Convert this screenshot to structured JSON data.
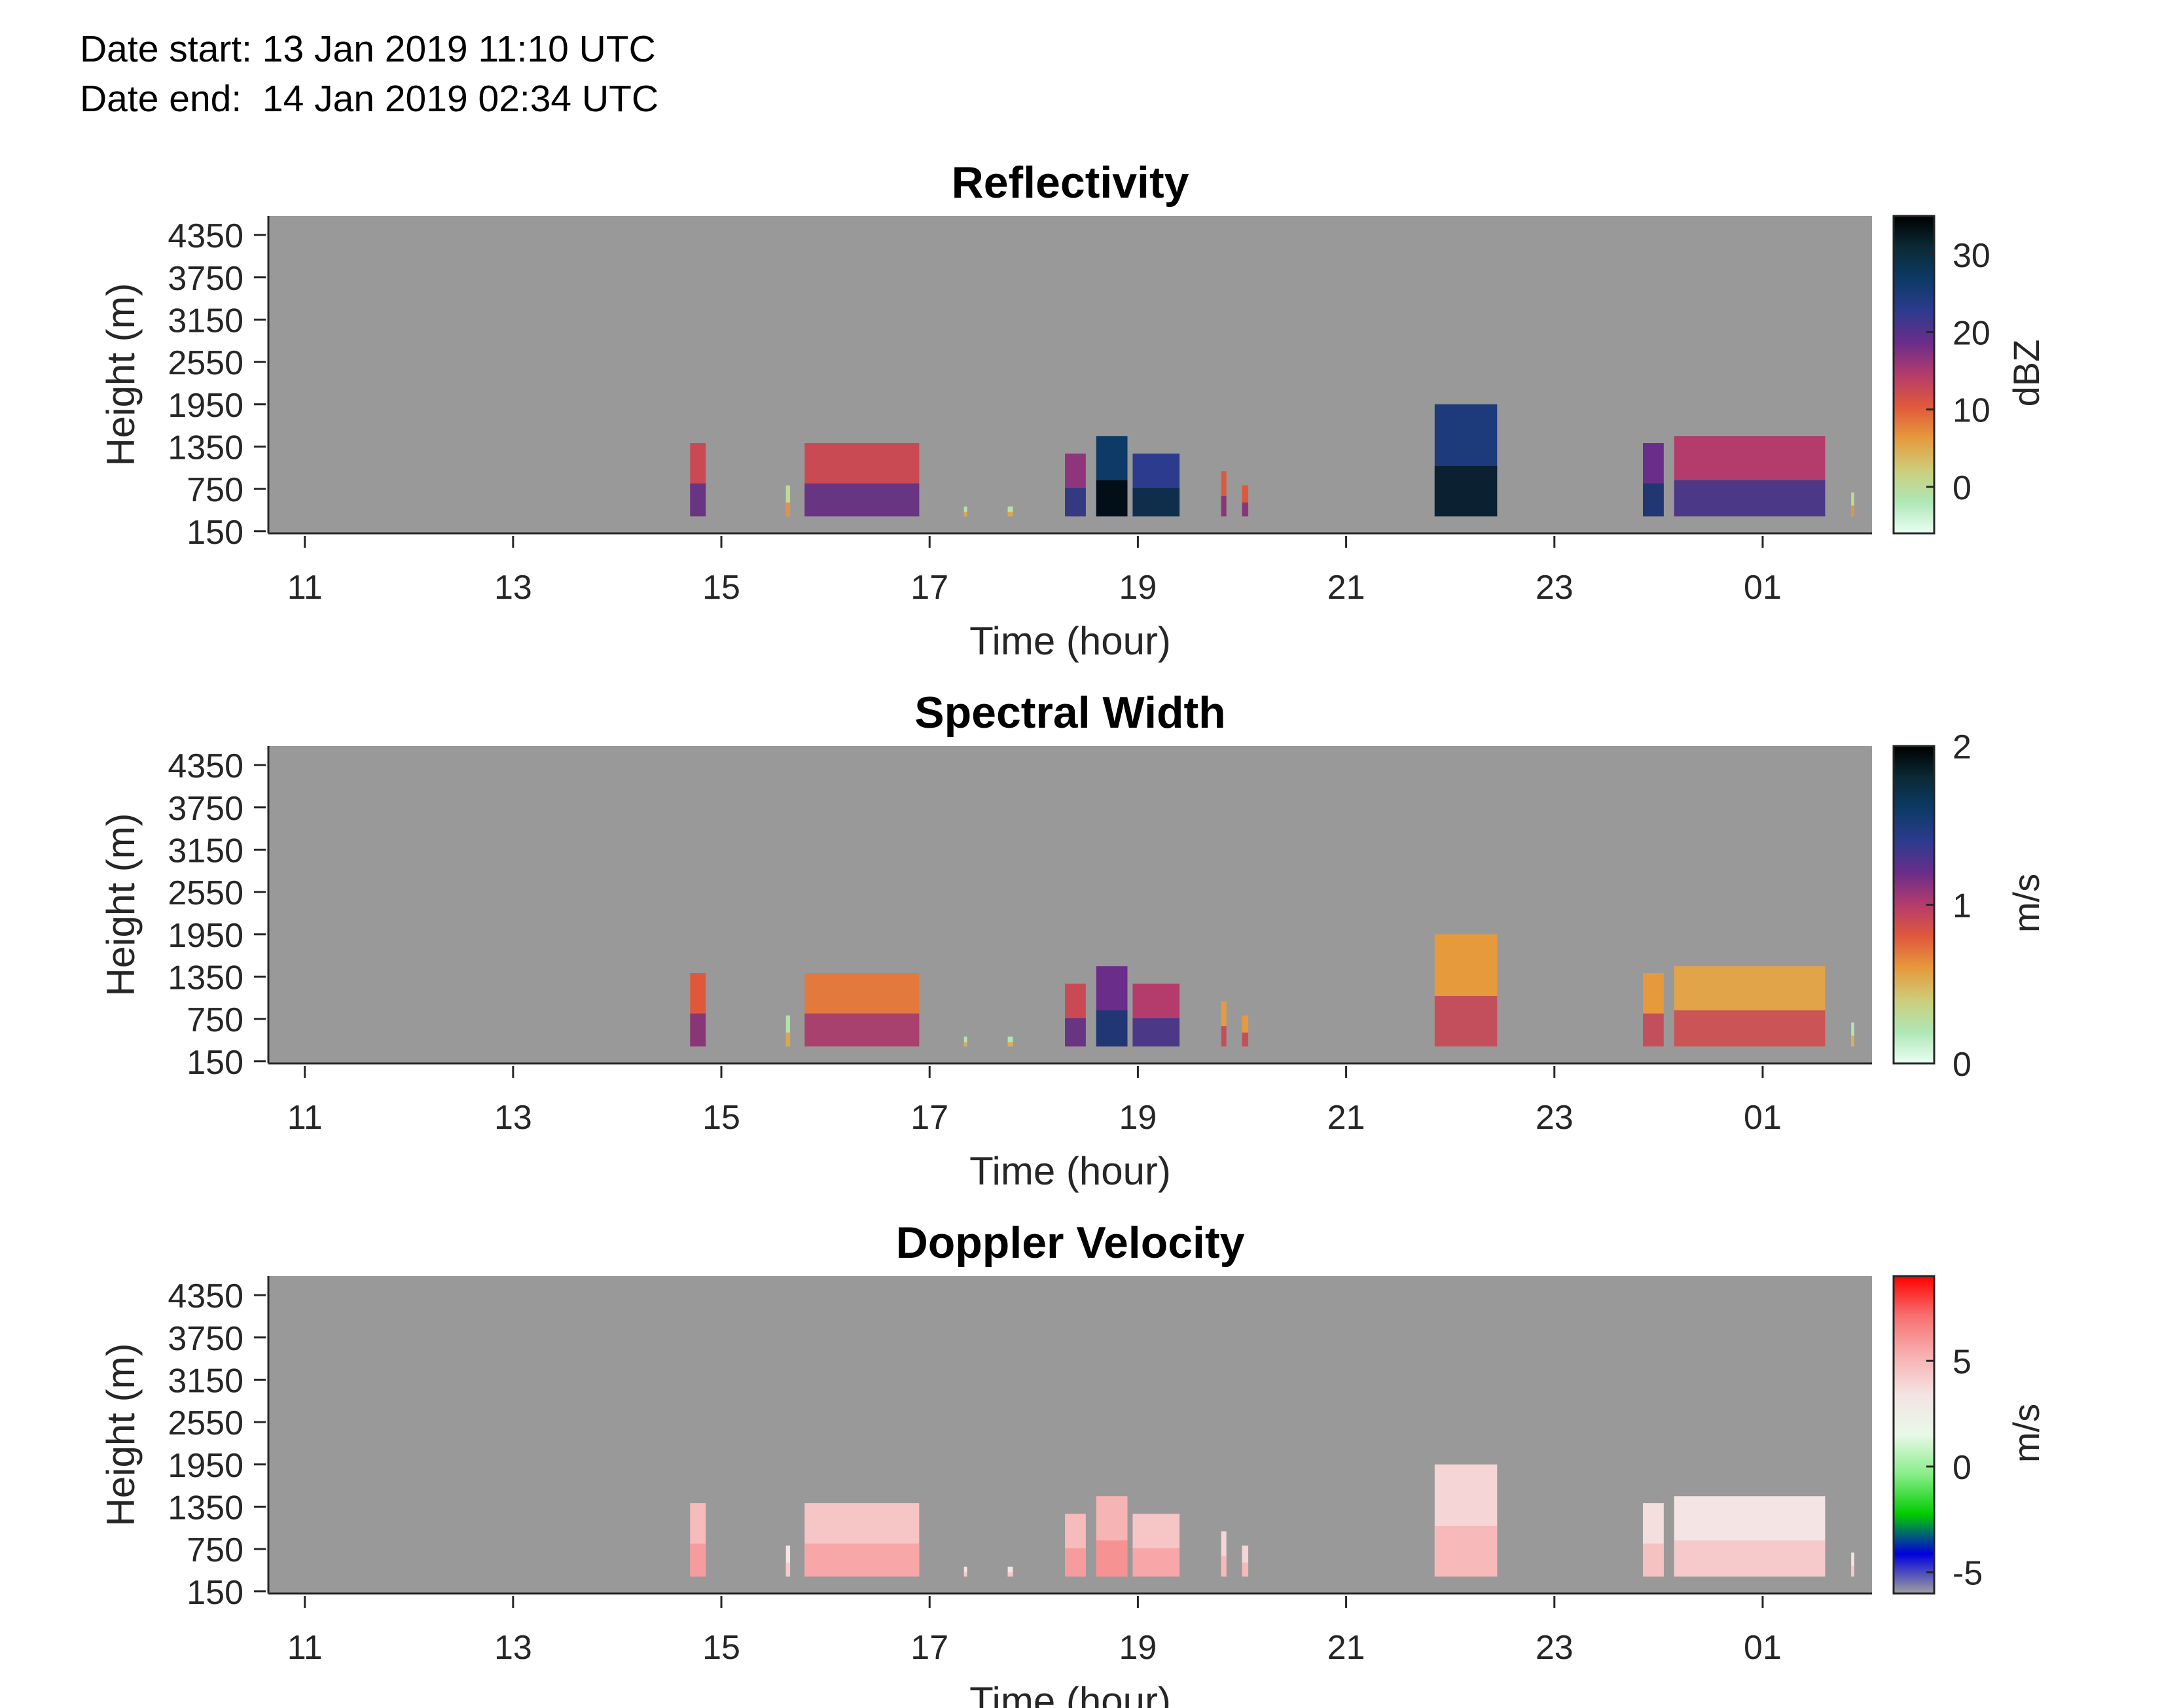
{
  "header": {
    "date_start_label": "Date start:",
    "date_start_value": "13 Jan 2019 11:10 UTC",
    "date_end_label": "Date end:",
    "date_end_value": "14 Jan 2019 02:34 UTC"
  },
  "colors": {
    "background": "#999999",
    "colorbar_ref_spec": [
      "#e8fff4",
      "#aee7b4",
      "#cdcd7a",
      "#e69a3c",
      "#e0583c",
      "#b43c6c",
      "#6a2d8a",
      "#2c3b8e",
      "#0d3a66",
      "#0b2a36",
      "#000000"
    ],
    "colorbar_doppler": [
      "#a0a0a0",
      "#0000dd",
      "#00cc00",
      "#88ee88",
      "#e8f8e8",
      "#f4e4e4",
      "#f7b0b0",
      "#f77070",
      "#ff0000"
    ]
  },
  "chart_data": [
    {
      "type": "heatmap",
      "title": "Reflectivity",
      "xlabel": "Time (hour)",
      "ylabel": "Height (m)",
      "x_ticks": [
        "11",
        "13",
        "15",
        "17",
        "19",
        "21",
        "23",
        "01"
      ],
      "x_range_hours": [
        10.65,
        26.05
      ],
      "y_ticks": [
        "150",
        "750",
        "1350",
        "1950",
        "2550",
        "3150",
        "3750",
        "4350"
      ],
      "y_range_m": [
        120,
        4620
      ],
      "colorbar": {
        "label": "dBZ",
        "ticks": [
          "0",
          "10",
          "20",
          "30"
        ],
        "range": [
          -6,
          35
        ]
      },
      "echo_blocks": [
        {
          "start": 14.7,
          "end": 14.85,
          "top": 1400,
          "level": 0.45
        },
        {
          "start": 15.62,
          "end": 15.66,
          "top": 800,
          "level": 0.15
        },
        {
          "start": 15.8,
          "end": 16.9,
          "top": 1400,
          "level": 0.45
        },
        {
          "start": 17.33,
          "end": 17.36,
          "top": 500,
          "level": 0.12
        },
        {
          "start": 17.75,
          "end": 17.8,
          "top": 500,
          "level": 0.12
        },
        {
          "start": 18.3,
          "end": 18.5,
          "top": 1250,
          "level": 0.55
        },
        {
          "start": 18.6,
          "end": 18.9,
          "top": 1500,
          "level": 0.8
        },
        {
          "start": 18.95,
          "end": 19.4,
          "top": 1250,
          "level": 0.7
        },
        {
          "start": 19.8,
          "end": 19.85,
          "top": 1000,
          "level": 0.4
        },
        {
          "start": 20.0,
          "end": 20.06,
          "top": 800,
          "level": 0.4
        },
        {
          "start": 21.85,
          "end": 22.45,
          "top": 1950,
          "level": 0.75
        },
        {
          "start": 23.85,
          "end": 24.05,
          "top": 1400,
          "level": 0.6
        },
        {
          "start": 24.15,
          "end": 25.6,
          "top": 1500,
          "level": 0.5
        },
        {
          "start": 25.85,
          "end": 25.88,
          "top": 700,
          "level": 0.15
        }
      ]
    },
    {
      "type": "heatmap",
      "title": "Spectral Width",
      "xlabel": "Time (hour)",
      "ylabel": "Height (m)",
      "x_ticks": [
        "11",
        "13",
        "15",
        "17",
        "19",
        "21",
        "23",
        "01"
      ],
      "x_range_hours": [
        10.65,
        26.05
      ],
      "y_ticks": [
        "150",
        "750",
        "1350",
        "1950",
        "2550",
        "3150",
        "3750",
        "4350"
      ],
      "y_range_m": [
        120,
        4620
      ],
      "colorbar": {
        "label": "m/s",
        "ticks": [
          "0",
          "1",
          "2"
        ],
        "range": [
          0,
          2
        ]
      },
      "echo_blocks": [
        {
          "start": 14.7,
          "end": 14.85,
          "top": 1400,
          "level": 0.4
        },
        {
          "start": 15.62,
          "end": 15.66,
          "top": 800,
          "level": 0.12
        },
        {
          "start": 15.8,
          "end": 16.9,
          "top": 1400,
          "level": 0.35
        },
        {
          "start": 17.33,
          "end": 17.36,
          "top": 500,
          "level": 0.1
        },
        {
          "start": 17.75,
          "end": 17.8,
          "top": 500,
          "level": 0.1
        },
        {
          "start": 18.3,
          "end": 18.5,
          "top": 1250,
          "level": 0.45
        },
        {
          "start": 18.6,
          "end": 18.9,
          "top": 1500,
          "level": 0.6
        },
        {
          "start": 18.95,
          "end": 19.4,
          "top": 1250,
          "level": 0.5
        },
        {
          "start": 19.8,
          "end": 19.85,
          "top": 1000,
          "level": 0.3
        },
        {
          "start": 20.0,
          "end": 20.06,
          "top": 800,
          "level": 0.3
        },
        {
          "start": 21.85,
          "end": 22.45,
          "top": 1950,
          "level": 0.3
        },
        {
          "start": 23.85,
          "end": 24.05,
          "top": 1400,
          "level": 0.3
        },
        {
          "start": 24.15,
          "end": 25.6,
          "top": 1500,
          "level": 0.28
        },
        {
          "start": 25.85,
          "end": 25.88,
          "top": 700,
          "level": 0.1
        }
      ]
    },
    {
      "type": "heatmap",
      "title": "Doppler Velocity",
      "xlabel": "Time (hour)",
      "ylabel": "Height (m)",
      "x_ticks": [
        "11",
        "13",
        "15",
        "17",
        "19",
        "21",
        "23",
        "01"
      ],
      "x_range_hours": [
        10.65,
        26.05
      ],
      "y_ticks": [
        "150",
        "750",
        "1350",
        "1950",
        "2550",
        "3150",
        "3750",
        "4350"
      ],
      "y_range_m": [
        120,
        4620
      ],
      "colorbar": {
        "label": "m/s",
        "ticks": [
          "-5",
          "0",
          "5"
        ],
        "range": [
          -6,
          9
        ]
      },
      "echo_blocks": [
        {
          "start": 14.7,
          "end": 14.85,
          "top": 1400,
          "level": 0.72
        },
        {
          "start": 15.62,
          "end": 15.66,
          "top": 800,
          "level": 0.62
        },
        {
          "start": 15.8,
          "end": 16.9,
          "top": 1400,
          "level": 0.7
        },
        {
          "start": 17.33,
          "end": 17.36,
          "top": 500,
          "level": 0.62
        },
        {
          "start": 17.75,
          "end": 17.8,
          "top": 500,
          "level": 0.62
        },
        {
          "start": 18.3,
          "end": 18.5,
          "top": 1250,
          "level": 0.72
        },
        {
          "start": 18.6,
          "end": 18.9,
          "top": 1500,
          "level": 0.74
        },
        {
          "start": 18.95,
          "end": 19.4,
          "top": 1250,
          "level": 0.7
        },
        {
          "start": 19.8,
          "end": 19.85,
          "top": 1000,
          "level": 0.66
        },
        {
          "start": 20.0,
          "end": 20.06,
          "top": 800,
          "level": 0.66
        },
        {
          "start": 21.85,
          "end": 22.45,
          "top": 1950,
          "level": 0.66
        },
        {
          "start": 23.85,
          "end": 24.05,
          "top": 1400,
          "level": 0.64
        },
        {
          "start": 24.15,
          "end": 25.6,
          "top": 1500,
          "level": 0.62
        },
        {
          "start": 25.85,
          "end": 25.88,
          "top": 700,
          "level": 0.62
        }
      ]
    }
  ]
}
